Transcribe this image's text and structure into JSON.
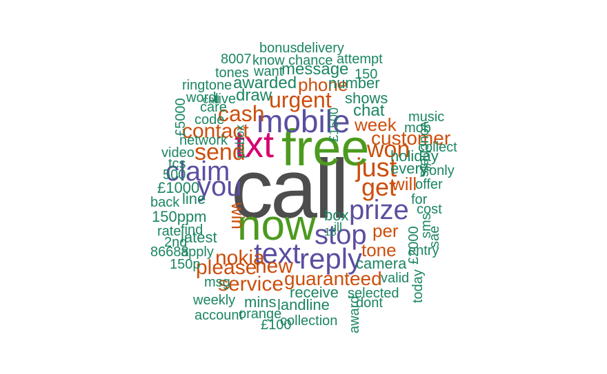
{
  "palette": {
    "grey": "#4d4d4d",
    "green": "#4c9a1e",
    "magenta": "#d6006d",
    "purple": "#5b4ea0",
    "orange": "#cc4e0c",
    "teal": "#1b8561"
  },
  "words": [
    {
      "text": "call",
      "color": "grey"
    },
    {
      "text": "free",
      "color": "green"
    },
    {
      "text": "now",
      "color": "green"
    },
    {
      "text": "txt",
      "color": "magenta"
    },
    {
      "text": "mobile",
      "color": "purple"
    },
    {
      "text": "claim",
      "color": "purple"
    },
    {
      "text": "you",
      "color": "purple"
    },
    {
      "text": "text",
      "color": "purple"
    },
    {
      "text": "reply",
      "color": "purple"
    },
    {
      "text": "stop",
      "color": "purple"
    },
    {
      "text": "prize",
      "color": "purple"
    },
    {
      "text": "just",
      "color": "orange"
    },
    {
      "text": "get",
      "color": "orange"
    },
    {
      "text": "won",
      "color": "orange"
    },
    {
      "text": "send",
      "color": "orange"
    },
    {
      "text": "cash",
      "color": "orange"
    },
    {
      "text": "urgent",
      "color": "orange"
    },
    {
      "text": "contact",
      "color": "orange"
    },
    {
      "text": "nokia",
      "color": "orange"
    },
    {
      "text": "please",
      "color": "orange"
    },
    {
      "text": "new",
      "color": "orange"
    },
    {
      "text": "service",
      "color": "orange"
    },
    {
      "text": "guaranteed",
      "color": "orange"
    },
    {
      "text": "customer",
      "color": "orange"
    },
    {
      "text": "week",
      "color": "orange"
    },
    {
      "text": "phone",
      "color": "orange"
    },
    {
      "text": "tone",
      "color": "orange"
    },
    {
      "text": "per",
      "color": "orange"
    },
    {
      "text": "will",
      "color": "orange"
    },
    {
      "text": "draw",
      "color": "teal"
    },
    {
      "text": "win",
      "color": "orange"
    },
    {
      "text": "awarded",
      "color": "teal"
    },
    {
      "text": "message",
      "color": "teal"
    },
    {
      "text": "chat",
      "color": "teal"
    },
    {
      "text": "shows",
      "color": "teal"
    },
    {
      "text": "number",
      "color": "teal"
    },
    {
      "text": "150ppm",
      "color": "teal"
    },
    {
      "text": "latest",
      "color": "teal"
    },
    {
      "text": "every",
      "color": "teal"
    },
    {
      "text": "holiday",
      "color": "teal"
    },
    {
      "text": "camera",
      "color": "teal"
    },
    {
      "text": "box",
      "color": "teal"
    },
    {
      "text": "£1000",
      "color": "teal"
    },
    {
      "text": "code",
      "color": "teal"
    },
    {
      "text": "cost",
      "color": "teal"
    },
    {
      "text": "line",
      "color": "teal"
    },
    {
      "text": "mins",
      "color": "teal"
    },
    {
      "text": "landline",
      "color": "teal"
    },
    {
      "text": "receive",
      "color": "teal"
    },
    {
      "text": "selected",
      "color": "teal"
    },
    {
      "text": "valid",
      "color": "teal"
    },
    {
      "text": "entry",
      "color": "teal"
    },
    {
      "text": "today",
      "color": "teal"
    },
    {
      "text": "bonus",
      "color": "teal"
    },
    {
      "text": "delivery",
      "color": "teal"
    },
    {
      "text": "8007",
      "color": "teal"
    },
    {
      "text": "know",
      "color": "teal"
    },
    {
      "text": "chance",
      "color": "teal"
    },
    {
      "text": "attempt",
      "color": "teal"
    },
    {
      "text": "tones",
      "color": "teal"
    },
    {
      "text": "want",
      "color": "teal"
    },
    {
      "text": "150",
      "color": "teal"
    },
    {
      "text": "ringtone",
      "color": "teal"
    },
    {
      "text": "word",
      "color": "teal"
    },
    {
      "text": "live",
      "color": "teal"
    },
    {
      "text": "care",
      "color": "teal"
    },
    {
      "text": "network",
      "color": "teal"
    },
    {
      "text": "video",
      "color": "teal"
    },
    {
      "text": "tcs",
      "color": "teal"
    },
    {
      "text": "500",
      "color": "teal"
    },
    {
      "text": "back",
      "color": "teal"
    },
    {
      "text": "rate",
      "color": "teal"
    },
    {
      "text": "find",
      "color": "teal"
    },
    {
      "text": "2nd",
      "color": "teal"
    },
    {
      "text": "86688",
      "color": "teal"
    },
    {
      "text": "apply",
      "color": "teal"
    },
    {
      "text": "150p",
      "color": "teal"
    },
    {
      "text": "msg",
      "color": "teal"
    },
    {
      "text": "weekly",
      "color": "teal"
    },
    {
      "text": "account",
      "color": "teal"
    },
    {
      "text": "orange",
      "color": "teal"
    },
    {
      "text": "£100",
      "color": "teal"
    },
    {
      "text": "collection",
      "color": "teal"
    },
    {
      "text": "award",
      "color": "teal"
    },
    {
      "text": "dont",
      "color": "teal"
    },
    {
      "text": "music",
      "color": "teal"
    },
    {
      "text": "mob",
      "color": "teal"
    },
    {
      "text": "collect",
      "color": "teal"
    },
    {
      "text": "only",
      "color": "teal"
    },
    {
      "text": "offer",
      "color": "teal"
    },
    {
      "text": "for",
      "color": "teal"
    },
    {
      "text": "sae",
      "color": "teal"
    },
    {
      "text": "£2000",
      "color": "teal"
    },
    {
      "text": "sms",
      "color": "teal"
    },
    {
      "text": "vouchers",
      "color": "teal"
    },
    {
      "text": "£5000",
      "color": "teal"
    },
    {
      "text": "£1500",
      "color": "teal"
    },
    {
      "text": "pobox",
      "color": "teal"
    },
    {
      "text": "ill",
      "color": "teal"
    },
    {
      "text": "cs",
      "color": "teal"
    },
    {
      "text": "18",
      "color": "teal"
    },
    {
      "text": "call",
      "color": "teal"
    }
  ]
}
